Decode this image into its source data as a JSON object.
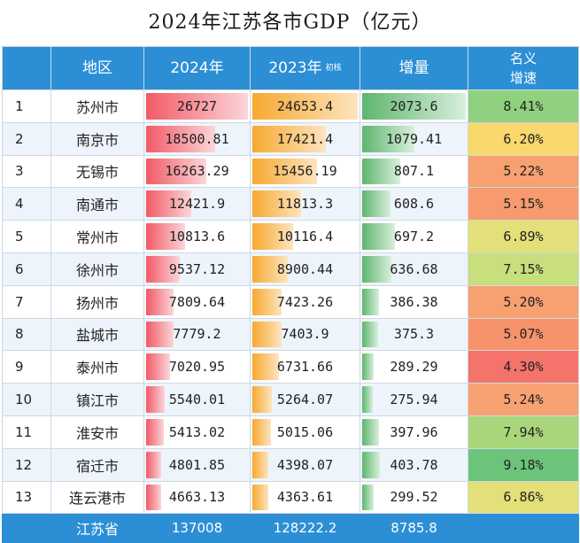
{
  "title": "2024年江苏各市GDP（亿元）",
  "header": {
    "rank": "",
    "region": "地区",
    "y2024": "2024年",
    "y2023": "2023年",
    "y2023_note": "初核",
    "increase": "增量",
    "growth_line1": "名义",
    "growth_line2": "增速"
  },
  "rows": [
    {
      "rank": "1",
      "region": "苏州市",
      "y2024": "26727",
      "y2023": "24653.4",
      "increase": "2073.6",
      "growth": "8.41%",
      "growth_color": "#8fd17e",
      "v2024": 26727,
      "v2023": 24653.4,
      "vinc": 2073.6
    },
    {
      "rank": "2",
      "region": "南京市",
      "y2024": "18500.81",
      "y2023": "17421.4",
      "increase": "1079.41",
      "growth": "6.20%",
      "growth_color": "#f9d86c",
      "v2024": 18500.81,
      "v2023": 17421.4,
      "vinc": 1079.41
    },
    {
      "rank": "3",
      "region": "无锡市",
      "y2024": "16263.29",
      "y2023": "15456.19",
      "increase": "807.1",
      "growth": "5.22%",
      "growth_color": "#f7a070",
      "v2024": 16263.29,
      "v2023": 15456.19,
      "vinc": 807.1
    },
    {
      "rank": "4",
      "region": "南通市",
      "y2024": "12421.9",
      "y2023": "11813.3",
      "increase": "608.6",
      "growth": "5.15%",
      "growth_color": "#f79a6d",
      "v2024": 12421.9,
      "v2023": 11813.3,
      "vinc": 608.6
    },
    {
      "rank": "5",
      "region": "常州市",
      "y2024": "10813.6",
      "y2023": "10116.4",
      "increase": "697.2",
      "growth": "6.89%",
      "growth_color": "#e3e07a",
      "v2024": 10813.6,
      "v2023": 10116.4,
      "vinc": 697.2
    },
    {
      "rank": "6",
      "region": "徐州市",
      "y2024": "9537.12",
      "y2023": "8900.44",
      "increase": "636.68",
      "growth": "7.15%",
      "growth_color": "#c9de7c",
      "v2024": 9537.12,
      "v2023": 8900.44,
      "vinc": 636.68
    },
    {
      "rank": "7",
      "region": "扬州市",
      "y2024": "7809.64",
      "y2023": "7423.26",
      "increase": "386.38",
      "growth": "5.20%",
      "growth_color": "#f7a070",
      "v2024": 7809.64,
      "v2023": 7423.26,
      "vinc": 386.38
    },
    {
      "rank": "8",
      "region": "盐城市",
      "y2024": "7779.2",
      "y2023": "7403.9",
      "increase": "375.3",
      "growth": "5.07%",
      "growth_color": "#f6936a",
      "v2024": 7779.2,
      "v2023": 7403.9,
      "vinc": 375.3
    },
    {
      "rank": "9",
      "region": "泰州市",
      "y2024": "7020.95",
      "y2023": "6731.66",
      "increase": "289.29",
      "growth": "4.30%",
      "growth_color": "#f4736a",
      "v2024": 7020.95,
      "v2023": 6731.66,
      "vinc": 289.29
    },
    {
      "rank": "10",
      "region": "镇江市",
      "y2024": "5540.01",
      "y2023": "5264.07",
      "increase": "275.94",
      "growth": "5.24%",
      "growth_color": "#f7a272",
      "v2024": 5540.01,
      "v2023": 5264.07,
      "vinc": 275.94
    },
    {
      "rank": "11",
      "region": "淮安市",
      "y2024": "5413.02",
      "y2023": "5015.06",
      "increase": "397.96",
      "growth": "7.94%",
      "growth_color": "#a9d67a",
      "v2024": 5413.02,
      "v2023": 5015.06,
      "vinc": 397.96
    },
    {
      "rank": "12",
      "region": "宿迁市",
      "y2024": "4801.85",
      "y2023": "4398.07",
      "increase": "403.78",
      "growth": "9.18%",
      "growth_color": "#6cc47a",
      "v2024": 4801.85,
      "v2023": 4398.07,
      "vinc": 403.78
    },
    {
      "rank": "13",
      "region": "连云港市",
      "y2024": "4663.13",
      "y2023": "4363.61",
      "increase": "299.52",
      "growth": "6.86%",
      "growth_color": "#e3e07a",
      "v2024": 4663.13,
      "v2023": 4363.61,
      "vinc": 299.52
    }
  ],
  "total": {
    "region": "江苏省",
    "y2024": "137008",
    "y2023": "128222.2",
    "increase": "8785.8"
  }
}
